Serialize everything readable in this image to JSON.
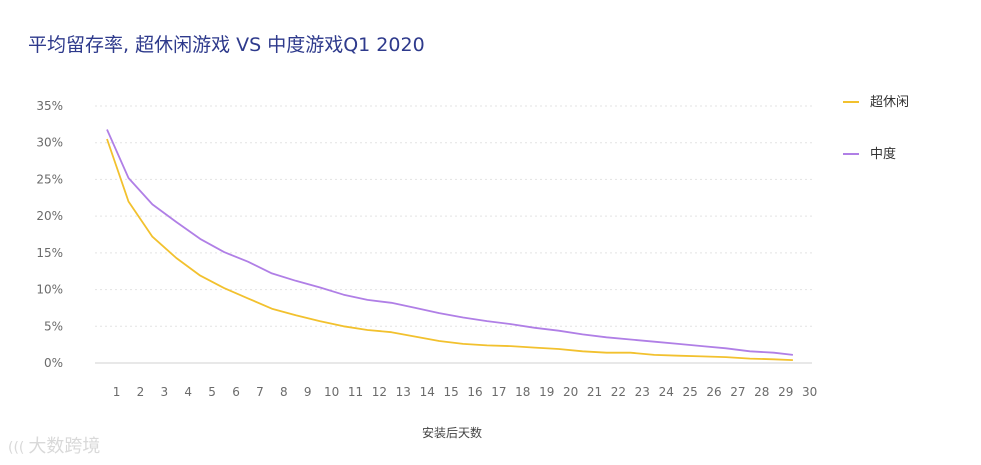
{
  "chart_data": {
    "type": "line",
    "title": "平均留存率, 超休闲游戏 VS 中度游戏Q1 2020",
    "xlabel": "安装后天数",
    "ylabel": "",
    "x": [
      1,
      2,
      3,
      4,
      5,
      6,
      7,
      8,
      9,
      10,
      11,
      12,
      13,
      14,
      15,
      16,
      17,
      18,
      19,
      20,
      21,
      22,
      23,
      24,
      25,
      26,
      27,
      28,
      29,
      30
    ],
    "xlim": [
      0.1,
      30.1
    ],
    "ylim": [
      0,
      35
    ],
    "yticks": [
      "0%",
      "5%",
      "10%",
      "15%",
      "20%",
      "25%",
      "30%",
      "35%"
    ],
    "grid": true,
    "legend_position": "right",
    "series": [
      {
        "name": "超休闲",
        "color": "#f2c12e",
        "x": [
          0.6,
          1.5,
          2.5,
          3.5,
          4.5,
          5.5,
          6.5,
          7.5,
          8.5,
          9.5,
          10.5,
          11.5,
          12.5,
          13.5,
          14.5,
          15.5,
          16.5,
          17.5,
          18.5,
          19.5,
          20.5,
          21.5,
          22.5,
          23.5,
          24.5,
          25.5,
          26.5,
          27.5,
          28.5,
          29.3
        ],
        "values": [
          30.5,
          22.0,
          17.2,
          14.3,
          11.9,
          10.2,
          8.8,
          7.4,
          6.5,
          5.7,
          5.0,
          4.5,
          4.2,
          3.6,
          3.0,
          2.6,
          2.4,
          2.3,
          2.1,
          1.9,
          1.6,
          1.4,
          1.4,
          1.1,
          1.0,
          0.9,
          0.8,
          0.6,
          0.5,
          0.4
        ]
      },
      {
        "name": "中度",
        "color": "#b07fe6",
        "x": [
          0.6,
          1.5,
          2.5,
          3.5,
          4.5,
          5.5,
          6.5,
          7.5,
          8.5,
          9.5,
          10.5,
          11.5,
          12.5,
          13.5,
          14.5,
          15.5,
          16.5,
          17.5,
          18.5,
          19.5,
          20.5,
          21.5,
          22.5,
          23.5,
          24.5,
          25.5,
          26.5,
          27.5,
          28.5,
          29.3
        ],
        "values": [
          31.8,
          25.2,
          21.6,
          19.2,
          16.9,
          15.1,
          13.8,
          12.2,
          11.2,
          10.3,
          9.3,
          8.6,
          8.2,
          7.5,
          6.8,
          6.2,
          5.7,
          5.3,
          4.8,
          4.4,
          3.9,
          3.5,
          3.2,
          2.9,
          2.6,
          2.3,
          2.0,
          1.6,
          1.4,
          1.1
        ]
      }
    ]
  },
  "watermark": {
    "logo": "(((",
    "text": "大数跨境"
  }
}
